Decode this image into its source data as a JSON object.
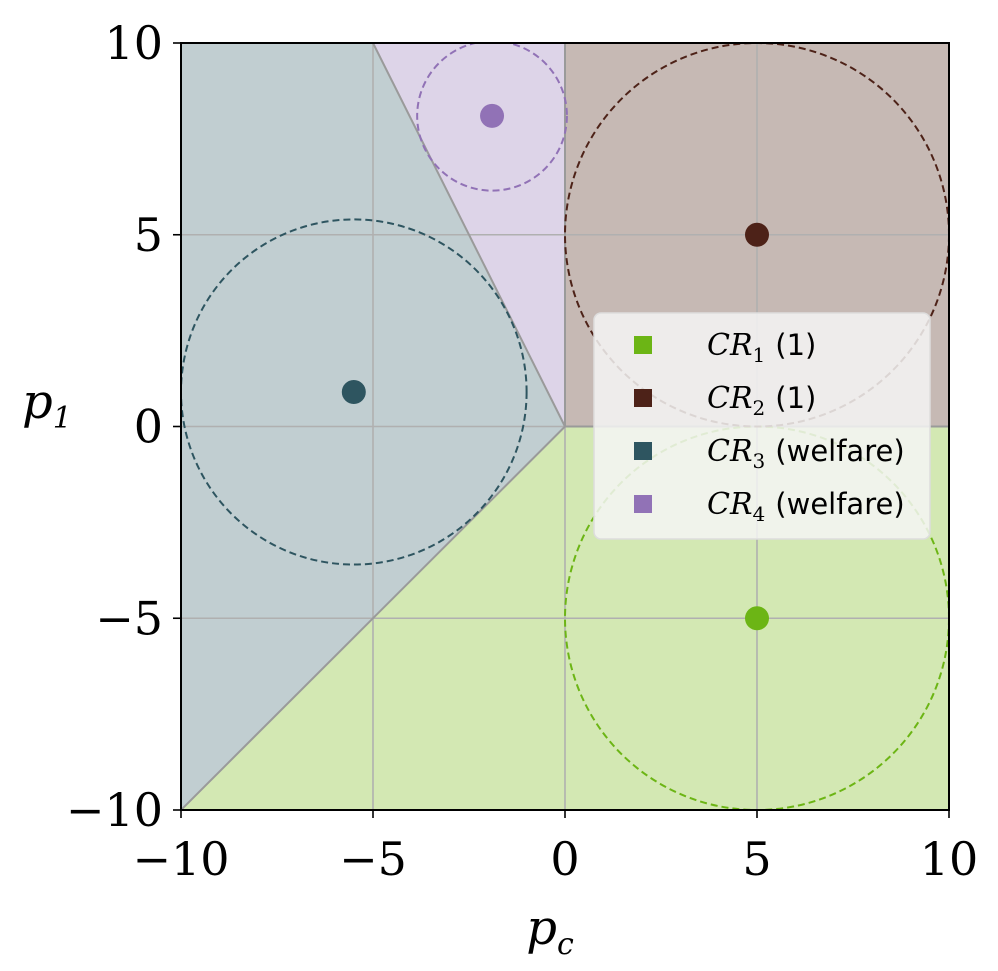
{
  "chart_data": {
    "type": "scatter",
    "title": "",
    "xlabel": {
      "main": "p",
      "sub": "c"
    },
    "ylabel": {
      "main": "p",
      "sub": "1"
    },
    "xlim": [
      -10,
      10
    ],
    "ylim": [
      -10,
      10
    ],
    "xticks": [
      -10,
      -5,
      0,
      5,
      10
    ],
    "yticks": [
      -10,
      -5,
      0,
      5,
      10
    ],
    "xtick_labels": [
      "−10",
      "−5",
      "0",
      "5",
      "10"
    ],
    "ytick_labels": [
      "−10",
      "−5",
      "0",
      "5",
      "10"
    ],
    "grid": true,
    "legend_position": "center-right",
    "regions": [
      {
        "name": "CR1",
        "color": "#d3e8b3",
        "polygon": [
          [
            -10,
            -10
          ],
          [
            10,
            -10
          ],
          [
            10,
            0
          ],
          [
            0,
            0
          ]
        ]
      },
      {
        "name": "CR2",
        "color": "#c6b9b4",
        "polygon": [
          [
            0,
            0
          ],
          [
            10,
            0
          ],
          [
            10,
            10
          ],
          [
            0,
            10
          ]
        ]
      },
      {
        "name": "CR3",
        "color": "#c1ced1",
        "polygon": [
          [
            -10,
            -10
          ],
          [
            0,
            0
          ],
          [
            -5,
            10
          ],
          [
            -10,
            10
          ]
        ]
      },
      {
        "name": "CR4",
        "color": "#ddd4e8",
        "polygon": [
          [
            0,
            0
          ],
          [
            0,
            10
          ],
          [
            -5,
            10
          ]
        ]
      }
    ],
    "boundaries": [
      [
        [
          -10,
          -10
        ],
        [
          0,
          0
        ]
      ],
      [
        [
          0,
          0
        ],
        [
          -5,
          10
        ]
      ],
      [
        [
          0,
          0
        ],
        [
          10,
          0
        ]
      ],
      [
        [
          0,
          0
        ],
        [
          0,
          10
        ]
      ]
    ],
    "series": [
      {
        "name": "CR1",
        "subscript": "1",
        "note": "(1)",
        "color": "#6cb515",
        "point": [
          5,
          -5
        ],
        "radius": 5
      },
      {
        "name": "CR2",
        "subscript": "2",
        "note": "(1)",
        "color": "#4d2218",
        "point": [
          5,
          5
        ],
        "radius": 5
      },
      {
        "name": "CR3",
        "subscript": "3",
        "note": "(welfare)",
        "color": "#2e5560",
        "point": [
          -5.5,
          0.9
        ],
        "radius": 4.5
      },
      {
        "name": "CR4",
        "subscript": "4",
        "note": "(welfare)",
        "color": "#9172b6",
        "point": [
          -1.9,
          8.1
        ],
        "radius": 1.95
      }
    ]
  }
}
